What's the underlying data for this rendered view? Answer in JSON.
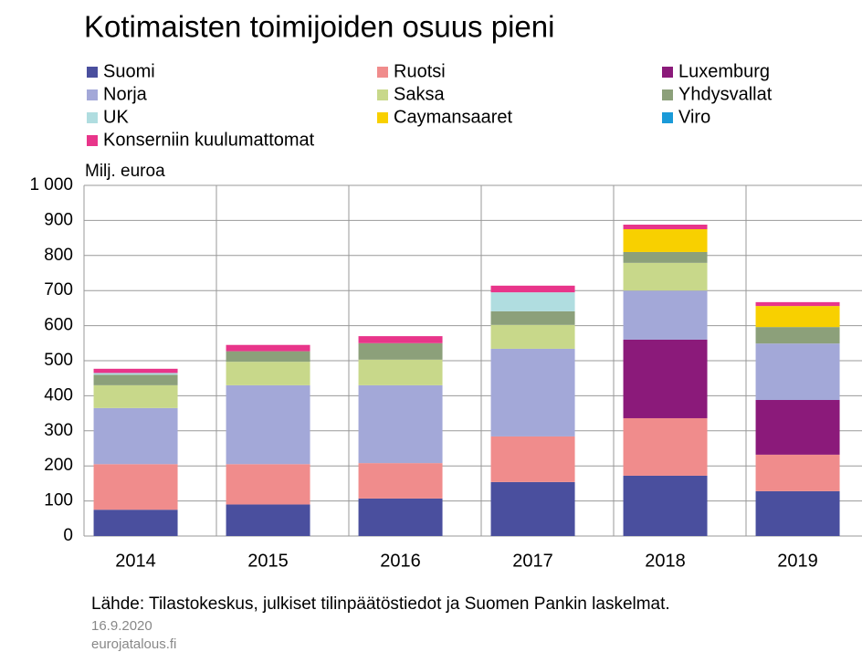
{
  "chart_data": {
    "type": "stacked_bar",
    "title": "Kotimaisten toimijoiden osuus pieni",
    "y_axis_label": "Milj. euroa",
    "source": "Lähde: Tilastokeskus, julkiset tilinpäätöstiedot ja Suomen Pankin laskelmat.",
    "date": "16.9.2020",
    "website": "eurojatalous.fi",
    "categories": [
      "2014",
      "2015",
      "2016",
      "2017",
      "2018",
      "2019"
    ],
    "series": [
      {
        "name": "Suomi",
        "color": "#4a4f9e",
        "values": [
          75,
          90,
          107,
          154,
          172,
          128
        ]
      },
      {
        "name": "Ruotsi",
        "color": "#f08c8c",
        "values": [
          130,
          115,
          101,
          130,
          164,
          104
        ]
      },
      {
        "name": "Luxemburg",
        "color": "#8b1a7a",
        "values": [
          0,
          0,
          0,
          0,
          224,
          156
        ]
      },
      {
        "name": "Norja",
        "color": "#a3a8d8",
        "values": [
          160,
          225,
          222,
          250,
          140,
          161
        ]
      },
      {
        "name": "Saksa",
        "color": "#c8d88a",
        "values": [
          65,
          67,
          73,
          68,
          79,
          0
        ]
      },
      {
        "name": "Yhdysvallat",
        "color": "#8ca07a",
        "values": [
          30,
          30,
          47,
          39,
          31,
          47
        ]
      },
      {
        "name": "UK",
        "color": "#b0dde0",
        "values": [
          5,
          0,
          0,
          54,
          0,
          0
        ]
      },
      {
        "name": "Caymansaaret",
        "color": "#f8d000",
        "values": [
          0,
          0,
          0,
          0,
          65,
          60
        ]
      },
      {
        "name": "Viro",
        "color": "#1a9ad8",
        "values": [
          0,
          0,
          0,
          0,
          0,
          0
        ]
      },
      {
        "name": "Konserniin kuulumattomat",
        "color": "#e8358a",
        "values": [
          12,
          18,
          20,
          19,
          13,
          11
        ]
      }
    ],
    "ylim": [
      0,
      1000
    ],
    "yticks": [
      0,
      100,
      200,
      300,
      400,
      500,
      600,
      700,
      800,
      900,
      {
        "value": 1000,
        "label": "1 000"
      }
    ],
    "grid": true
  }
}
